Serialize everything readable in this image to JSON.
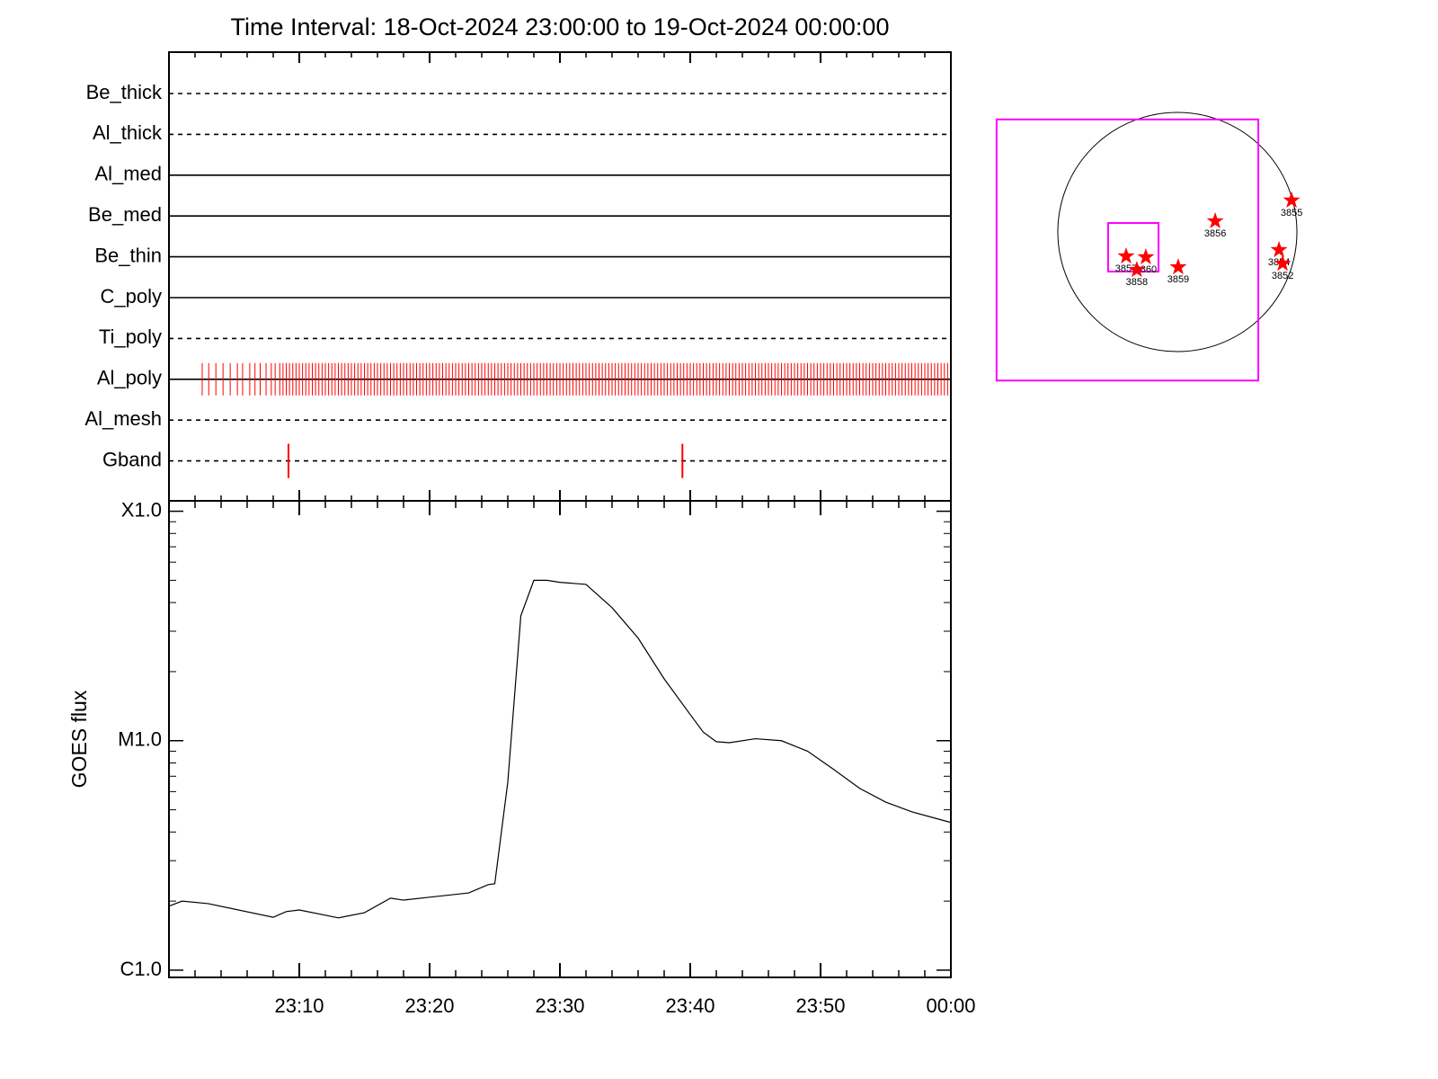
{
  "chart_data": [
    {
      "type": "event-rows",
      "title": "Time Interval: 18-Oct-2024 23:00:00 to 19-Oct-2024 00:00:00",
      "xlim": [
        0,
        60
      ],
      "event_color": "#ff0000",
      "rows": [
        {
          "name": "Be_thick",
          "style": "dashed",
          "events": []
        },
        {
          "name": "Al_thick",
          "style": "dashed",
          "events": []
        },
        {
          "name": "Al_med",
          "style": "solid",
          "events": []
        },
        {
          "name": "Be_med",
          "style": "solid",
          "events": []
        },
        {
          "name": "Be_thin",
          "style": "solid",
          "events": []
        },
        {
          "name": "C_poly",
          "style": "solid",
          "events": []
        },
        {
          "name": "Ti_poly",
          "style": "dashed",
          "events": []
        },
        {
          "name": "Al_poly",
          "style": "solid",
          "events": [
            2.55,
            3.05,
            3.6,
            4.15,
            4.7,
            5.25,
            5.65,
            6.2,
            6.6,
            7.0,
            7.45,
            7.85,
            8.15,
            8.5,
            8.75,
            9,
            9.25,
            9.5,
            9.75,
            10,
            10.25,
            10.5,
            10.75,
            11,
            11.25,
            11.5,
            11.75,
            12,
            12.25,
            12.5,
            12.75,
            13,
            13.25,
            13.5,
            13.75,
            14,
            14.25,
            14.5,
            14.75,
            15,
            15.25,
            15.5,
            15.75,
            16,
            16.25,
            16.5,
            16.75,
            17,
            17.25,
            17.5,
            17.75,
            18,
            18.25,
            18.5,
            18.75,
            19,
            19.25,
            19.5,
            19.75,
            20,
            20.25,
            20.5,
            20.75,
            21,
            21.25,
            21.5,
            21.75,
            22,
            22.25,
            22.5,
            22.75,
            23,
            23.25,
            23.5,
            23.75,
            24,
            24.25,
            24.5,
            24.75,
            25,
            25.25,
            25.5,
            25.75,
            26,
            26.25,
            26.5,
            26.75,
            27,
            27.25,
            27.5,
            27.75,
            28,
            28.25,
            28.5,
            28.75,
            29,
            29.25,
            29.5,
            29.75,
            30,
            30.25,
            30.5,
            30.75,
            31,
            31.25,
            31.5,
            31.75,
            32,
            32.25,
            32.5,
            32.75,
            33,
            33.25,
            33.5,
            33.75,
            34,
            34.25,
            34.5,
            34.75,
            35,
            35.25,
            35.5,
            35.75,
            36,
            36.25,
            36.5,
            36.75,
            37,
            37.25,
            37.5,
            37.75,
            38,
            38.25,
            38.5,
            38.75,
            39,
            39.25,
            39.5,
            39.75,
            40,
            40.25,
            40.5,
            40.75,
            41,
            41.25,
            41.5,
            41.75,
            42,
            42.25,
            42.5,
            42.75,
            43,
            43.25,
            43.5,
            43.75,
            44,
            44.25,
            44.5,
            44.75,
            45,
            45.25,
            45.5,
            45.75,
            46,
            46.25,
            46.5,
            46.75,
            47,
            47.25,
            47.5,
            47.75,
            48,
            48.25,
            48.5,
            48.75,
            49,
            49.25,
            49.5,
            49.75,
            50,
            50.25,
            50.5,
            50.75,
            51,
            51.25,
            51.5,
            51.75,
            52,
            52.25,
            52.5,
            52.75,
            53,
            53.25,
            53.5,
            53.75,
            54,
            54.25,
            54.5,
            54.75,
            55,
            55.25,
            55.5,
            55.75,
            56,
            56.25,
            56.5,
            56.75,
            57,
            57.25,
            57.5,
            57.75,
            58,
            58.25,
            58.5,
            58.75,
            59,
            59.25,
            59.5,
            59.75
          ]
        },
        {
          "name": "Al_mesh",
          "style": "dashed",
          "events": []
        },
        {
          "name": "Gband",
          "style": "dashed",
          "events": [
            9.17,
            39.4
          ]
        }
      ]
    },
    {
      "type": "line",
      "ylabel": "GOES flux",
      "log_y": true,
      "color": "#000000",
      "xlim": [
        0,
        60
      ],
      "xticks": [
        {
          "value": 10,
          "label": "23:10"
        },
        {
          "value": 20,
          "label": "23:20"
        },
        {
          "value": 30,
          "label": "23:30"
        },
        {
          "value": 40,
          "label": "23:40"
        },
        {
          "value": 50,
          "label": "23:50"
        },
        {
          "value": 60,
          "label": "00:00"
        }
      ],
      "xminorticks": [
        2,
        4,
        6,
        8,
        12,
        14,
        16,
        18,
        22,
        24,
        26,
        28,
        32,
        34,
        36,
        38,
        42,
        44,
        46,
        48,
        52,
        54,
        56,
        58
      ],
      "ylim": [
        9.3e-07,
        0.000111
      ],
      "yticks": [
        {
          "value": 1e-06,
          "label": "C1.0"
        },
        {
          "value": 1e-05,
          "label": "M1.0"
        },
        {
          "value": 0.0001,
          "label": "X1.0"
        }
      ],
      "yminorticks": [
        2e-06,
        3e-06,
        4e-06,
        5e-06,
        6e-06,
        7e-06,
        8e-06,
        9e-06,
        2e-05,
        3e-05,
        4e-05,
        5e-05,
        6e-05,
        7e-05,
        8e-05,
        9e-05
      ],
      "x": [
        0,
        1,
        3,
        8,
        9,
        10,
        13,
        15,
        17,
        18,
        20,
        23,
        24.5,
        25,
        26,
        27,
        28,
        29,
        30,
        32,
        34,
        36,
        38,
        40,
        41,
        42,
        43,
        45,
        47,
        49,
        51,
        53,
        55,
        57,
        60
      ],
      "values": [
        1.9e-06,
        2e-06,
        1.95e-06,
        1.7e-06,
        1.8e-06,
        1.83e-06,
        1.69e-06,
        1.78e-06,
        2.06e-06,
        2.02e-06,
        2.08e-06,
        2.17e-06,
        2.36e-06,
        2.38e-06,
        6.6e-06,
        3.5e-05,
        5e-05,
        5e-05,
        4.9e-05,
        4.8e-05,
        3.8e-05,
        2.8e-05,
        1.86e-05,
        1.3e-05,
        1.09e-05,
        9.9e-06,
        9.8e-06,
        1.02e-05,
        1e-05,
        9e-06,
        7.5e-06,
        6.2e-06,
        5.4e-06,
        4.9e-06,
        4.4e-06
      ]
    },
    {
      "type": "map",
      "disk_radius": 970,
      "box_color": "#ff00ff",
      "star_color": "#ff0000",
      "boxes": [
        {
          "x": [
            -1467,
            657
          ],
          "y": [
            -1205,
            913
          ]
        },
        {
          "x": [
            -562,
            -153
          ],
          "y": [
            -321,
            73
          ]
        }
      ],
      "regions": [
        {
          "name": "3856",
          "x": 307,
          "y": 88
        },
        {
          "name": "3855",
          "x": 927,
          "y": 256
        },
        {
          "name": "3854",
          "x": 825,
          "y": -146
        },
        {
          "name": "3852",
          "x": 854,
          "y": -256
        },
        {
          "name": "3857",
          "x": -416,
          "y": -197
        },
        {
          "name": "3860",
          "x": -256,
          "y": -204
        },
        {
          "name": "3858",
          "x": -329,
          "y": -307
        },
        {
          "name": "3859",
          "x": 7,
          "y": -285
        }
      ]
    }
  ]
}
